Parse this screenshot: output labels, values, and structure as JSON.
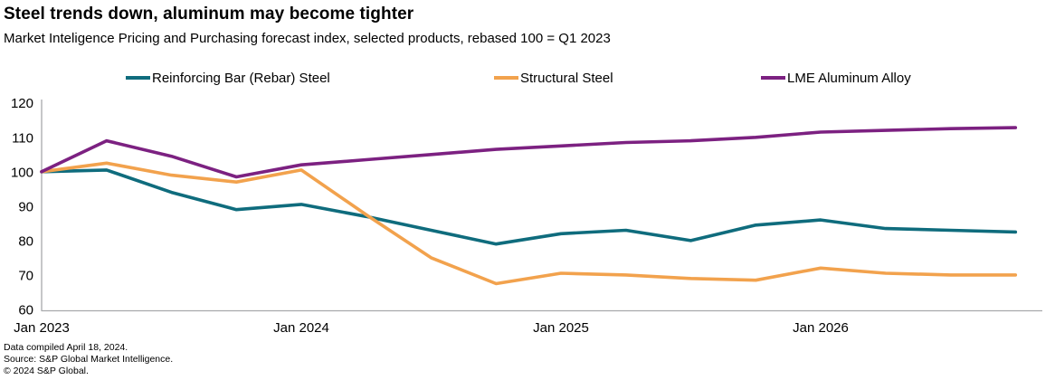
{
  "header": {
    "title": "Steel trends down, aluminum may become tighter",
    "subtitle": "Market Inteligence Pricing and Purchasing forecast index, selected products, rebased 100 = Q1 2023"
  },
  "chart_data": {
    "type": "line",
    "title": "Steel trends down, aluminum may become tighter",
    "subtitle": "Market Inteligence Pricing and Purchasing forecast index, selected products, rebased 100 = Q1 2023",
    "categories": [
      "Q1 2023",
      "Q2 2023",
      "Q3 2023",
      "Q4 2023",
      "Q1 2024",
      "Q2 2024",
      "Q3 2024",
      "Q4 2024",
      "Q1 2025",
      "Q2 2025",
      "Q3 2025",
      "Q4 2025",
      "Q1 2026",
      "Q2 2026",
      "Q3 2026",
      "Q4 2026"
    ],
    "series": [
      {
        "name": "Reinforcing Bar (Rebar) Steel",
        "color": "#0F6C7D",
        "values": [
          100,
          100.5,
          94,
          89,
          90.5,
          87,
          83,
          79,
          82,
          83,
          80,
          84.5,
          86,
          83.5,
          83,
          82.5
        ]
      },
      {
        "name": "Structural Steel",
        "color": "#F2A24D",
        "values": [
          100,
          102.5,
          99,
          97,
          100.5,
          87.5,
          75,
          67.5,
          70.5,
          70,
          69,
          68.5,
          72,
          70.5,
          70,
          70
        ]
      },
      {
        "name": "LME Aluminum Alloy",
        "color": "#7C2181",
        "values": [
          100,
          109,
          104.5,
          98.5,
          102,
          103.5,
          105,
          106.5,
          107.5,
          108.5,
          109,
          110,
          111.5,
          112,
          112.5,
          112.8
        ]
      }
    ],
    "ylim": [
      60,
      120
    ],
    "y_ticks": [
      120,
      110,
      100,
      90,
      80,
      70,
      60
    ],
    "x_tick_labels": [
      {
        "label": "Jan 2023",
        "index": 0
      },
      {
        "label": "Jan 2024",
        "index": 4
      },
      {
        "label": "Jan 2025",
        "index": 8
      },
      {
        "label": "Jan 2026",
        "index": 12
      }
    ],
    "xlabel": "",
    "ylabel": "",
    "grid": "off",
    "legend_position": "top",
    "axis_color": "#A7A9AC",
    "tick_label_color": "#000000"
  },
  "footer": {
    "line1": "Data compiled April 18, 2024.",
    "line2": "Source: S&P Global Market Intelligence.",
    "line3": "© 2024 S&P Global."
  }
}
